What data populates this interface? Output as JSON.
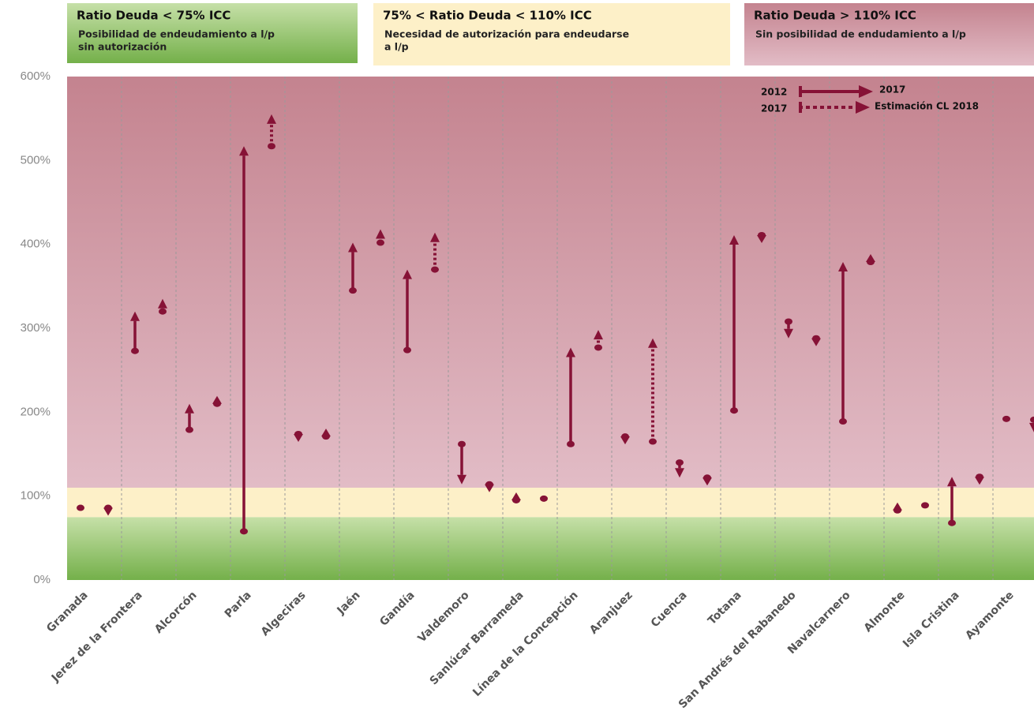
{
  "chart_data": {
    "type": "arrow",
    "categories": [
      "Granada",
      "Jerez de la Frontera",
      "Alcorcón",
      "Parla",
      "Algeciras",
      "Jaén",
      "Gandía",
      "Valdemoro",
      "Sanlúcar Barrameda",
      "Línea de la Concepción",
      "Aranjuez",
      "Cuenca",
      "Totana",
      "San Andrés del Rabanedo",
      "Navalcarnero",
      "Almonte",
      "Isla Cristina",
      "Ayamonte"
    ],
    "series": [
      {
        "name": "2012",
        "values": [
          86,
          273,
          179,
          58,
          174,
          345,
          274,
          162,
          95,
          162,
          171,
          140,
          202,
          308,
          189,
          83,
          68,
          192
        ]
      },
      {
        "name": "2017",
        "values": [
          86,
          320,
          210,
          517,
          171,
          402,
          370,
          114,
          97,
          277,
          165,
          122,
          411,
          288,
          379,
          89,
          123,
          191
        ]
      },
      {
        "name": "Estimación CL 2018",
        "values": [
          81,
          335,
          213,
          555,
          182,
          418,
          414,
          112,
          98,
          298,
          288,
          117,
          404,
          284,
          386,
          90,
          120,
          176
        ]
      }
    ],
    "color": "#861236",
    "ylim": [
      0,
      600
    ],
    "yticks": [
      {
        "value": 0,
        "label": "0%"
      },
      {
        "value": 100,
        "label": "100%"
      },
      {
        "value": 200,
        "label": "200%"
      },
      {
        "value": 300,
        "label": "300%"
      },
      {
        "value": 400,
        "label": "400%"
      },
      {
        "value": 500,
        "label": "500%"
      },
      {
        "value": 600,
        "label": "600%"
      }
    ],
    "xgrid": true,
    "bands": [
      {
        "from": 0,
        "to": 75,
        "top": "#c6e0a8",
        "bottom": "#74b04a",
        "title": "Ratio Deuda < 75% ICC",
        "description": [
          "Posibilidad de endeudamiento a l/p",
          "sin autorización"
        ]
      },
      {
        "from": 75,
        "to": 110,
        "top": "#fdf0c8",
        "bottom": "#fdf0c8",
        "title": "75% < Ratio Deuda < 110% ICC",
        "description": [
          "Necesidad de autorización para endeudarse",
          "a l/p"
        ]
      },
      {
        "from": 110,
        "to": 600,
        "top": "#c4838f",
        "bottom": "#e2bcc6",
        "title": "Ratio Deuda > 110% ICC",
        "description": [
          "Sin posibilidad de endudamiento a l/p"
        ]
      }
    ]
  }
}
